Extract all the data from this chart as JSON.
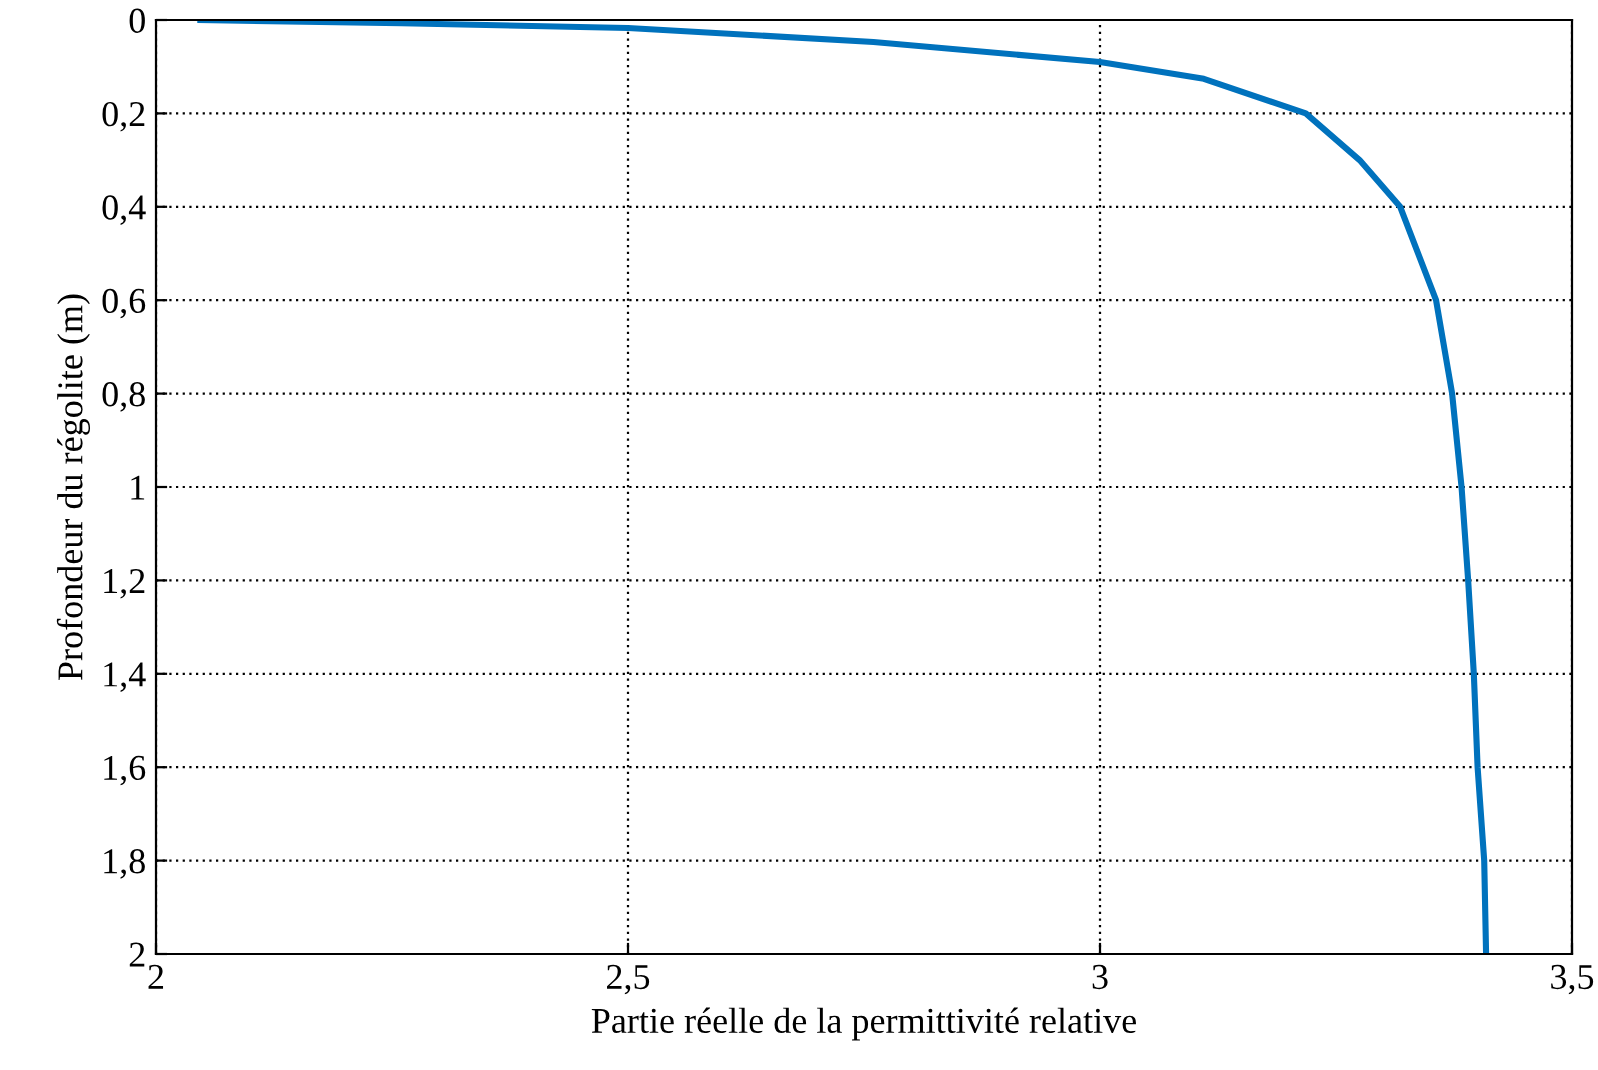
{
  "chart_data": {
    "type": "line",
    "xlabel": "Partie réelle de la permittivité relative",
    "ylabel": "Profondeur du régolite (m)",
    "series": [
      {
        "color": "#0072bd",
        "x": [
          2.047,
          2.26,
          2.5,
          2.76,
          3.0,
          3.11,
          3.218,
          3.275,
          3.318,
          3.356,
          3.373,
          3.383,
          3.39,
          3.396,
          3.4,
          3.407,
          3.409
        ],
        "values": [
          0,
          0.007,
          0.017,
          0.047,
          0.09,
          0.126,
          0.2,
          0.3,
          0.4,
          0.6,
          0.8,
          1.0,
          1.2,
          1.4,
          1.6,
          1.8,
          2.0
        ]
      }
    ],
    "xlim": [
      2,
      3.5
    ],
    "ylim": [
      2,
      0
    ],
    "xticks": [
      2,
      {
        "value": 2.5,
        "label": "2,5"
      },
      3,
      {
        "value": 3.5,
        "label": "3,5"
      }
    ],
    "yticks": [
      0,
      {
        "value": 0.2,
        "label": "0,2"
      },
      {
        "value": 0.4,
        "label": "0,4"
      },
      {
        "value": 0.6,
        "label": "0,6"
      },
      {
        "value": 0.8,
        "label": "0,8"
      },
      1,
      {
        "value": 1.2,
        "label": "1,2"
      },
      {
        "value": 1.4,
        "label": "1,4"
      },
      {
        "value": 1.6,
        "label": "1,6"
      },
      {
        "value": 1.8,
        "label": "1,8"
      },
      2
    ],
    "grid": true,
    "legend": false,
    "marker": "none",
    "line_style": "solid"
  }
}
